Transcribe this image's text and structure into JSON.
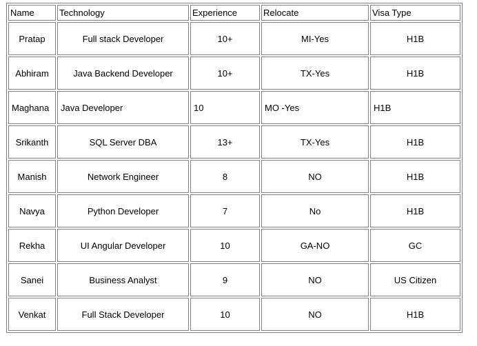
{
  "table": {
    "headers": [
      "Name",
      "Technology",
      "Experience",
      "Relocate",
      "Visa Type"
    ],
    "rows": [
      {
        "name": "Pratap",
        "technology": "Full stack Developer",
        "experience": "10+",
        "relocate": "MI-Yes",
        "visa": "H1B"
      },
      {
        "name": "Abhiram",
        "technology": "Java Backend Developer",
        "experience": "10+",
        "relocate": "TX-Yes",
        "visa": "H1B"
      },
      {
        "name": "Maghana",
        "technology": "Java Developer",
        "experience": "10",
        "relocate": "MO -Yes",
        "visa": "H1B"
      },
      {
        "name": "Srikanth",
        "technology": "SQL Server DBA",
        "experience": "13+",
        "relocate": "TX-Yes",
        "visa": "H1B"
      },
      {
        "name": "Manish",
        "technology": "Network Engineer",
        "experience": "8",
        "relocate": "NO",
        "visa": "H1B"
      },
      {
        "name": "Navya",
        "technology": "Python Developer",
        "experience": "7",
        "relocate": "No",
        "visa": "H1B"
      },
      {
        "name": "Rekha",
        "technology": "UI Angular Developer",
        "experience": "10",
        "relocate": "GA-NO",
        "visa": "GC"
      },
      {
        "name": "Sanei",
        "technology": "Business Analyst",
        "experience": "9",
        "relocate": "NO",
        "visa": "US Citizen"
      },
      {
        "name": "Venkat",
        "technology": "Full Stack Developer",
        "experience": "10",
        "relocate": "NO",
        "visa": "H1B"
      }
    ]
  }
}
